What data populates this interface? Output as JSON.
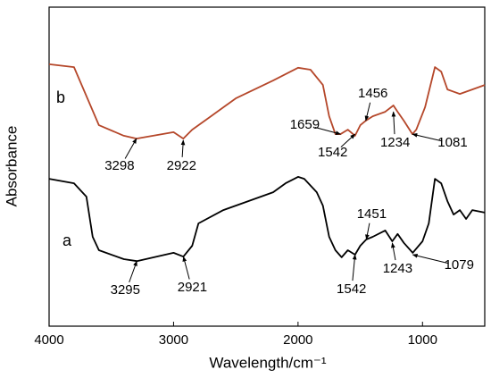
{
  "chart_data": {
    "type": "line",
    "x_label": "Wavelength/cm⁻¹",
    "y_label": "Absorbance",
    "xlim": [
      4000,
      500
    ],
    "ylim": [
      0,
      100
    ],
    "xticks": [
      4000,
      3000,
      2000,
      1000
    ],
    "series": [
      {
        "name": "a",
        "color": "#000000",
        "x": [
          4000,
          3800,
          3700,
          3650,
          3600,
          3400,
          3295,
          3000,
          2921,
          2850,
          2800,
          2600,
          2400,
          2200,
          2100,
          2000,
          1950,
          1850,
          1800,
          1750,
          1700,
          1650,
          1600,
          1542,
          1500,
          1451,
          1400,
          1300,
          1243,
          1200,
          1150,
          1079,
          1000,
          950,
          900,
          850,
          800,
          750,
          700,
          650,
          600,
          500
        ],
        "values": [
          46.2,
          44.8,
          40.6,
          28.0,
          23.8,
          21.0,
          20.4,
          23.0,
          21.8,
          25.2,
          32.2,
          36.4,
          39.2,
          42.0,
          44.8,
          46.8,
          46.2,
          42.0,
          37.8,
          28.0,
          23.8,
          21.6,
          23.8,
          22.4,
          25.2,
          27.2,
          28.0,
          30.0,
          26.6,
          28.9,
          26.1,
          23.0,
          26.6,
          32.2,
          46.2,
          44.8,
          39.2,
          35.0,
          36.4,
          33.6,
          36.4,
          35.6
        ]
      },
      {
        "name": "b",
        "color": "#b5472a",
        "x": [
          4000,
          3800,
          3600,
          3400,
          3298,
          3000,
          2922,
          2850,
          2700,
          2500,
          2200,
          2000,
          1900,
          1800,
          1750,
          1700,
          1659,
          1600,
          1542,
          1500,
          1456,
          1400,
          1300,
          1234,
          1200,
          1150,
          1081,
          1050,
          980,
          900,
          850,
          800,
          700,
          600,
          500
        ],
        "values": [
          82.1,
          81.2,
          63.0,
          59.7,
          58.8,
          60.8,
          58.8,
          61.6,
          65.8,
          71.4,
          77.0,
          81.0,
          80.4,
          75.6,
          65.8,
          60.2,
          60.2,
          61.6,
          59.7,
          63.0,
          64.4,
          65.8,
          67.2,
          69.2,
          67.2,
          64.4,
          60.2,
          61.6,
          68.6,
          81.2,
          79.8,
          74.2,
          72.8,
          74.2,
          75.6
        ]
      }
    ],
    "annotations": [
      {
        "text": "3298",
        "x": 3298,
        "y": 58.8
      },
      {
        "text": "2922",
        "x": 2922,
        "y": 58.3
      },
      {
        "text": "1659",
        "x": 1659,
        "y": 60.2
      },
      {
        "text": "1542",
        "x": 1542,
        "y": 60.2
      },
      {
        "text": "1456",
        "x": 1456,
        "y": 64.4
      },
      {
        "text": "1234",
        "x": 1234,
        "y": 67.2
      },
      {
        "text": "1081",
        "x": 1081,
        "y": 60.2
      },
      {
        "text": "3295",
        "x": 3295,
        "y": 20.4
      },
      {
        "text": "2921",
        "x": 2921,
        "y": 21.8
      },
      {
        "text": "1542",
        "x": 1542,
        "y": 22.4
      },
      {
        "text": "1451",
        "x": 1451,
        "y": 27.2
      },
      {
        "text": "1243",
        "x": 1243,
        "y": 26.1
      },
      {
        "text": "1079",
        "x": 1079,
        "y": 22.4
      }
    ]
  }
}
